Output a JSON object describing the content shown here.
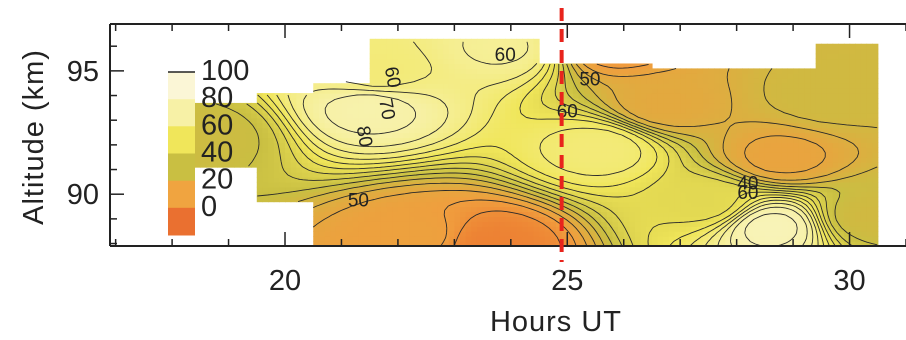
{
  "chart_data": {
    "type": "heatmap",
    "title": "",
    "xlabel": "Hours UT",
    "ylabel": "Altitude (km)",
    "xlim": [
      16.9,
      31.0
    ],
    "ylim": [
      87.9,
      96.9
    ],
    "x_ticks": [
      20,
      25,
      30
    ],
    "y_ticks": [
      90,
      95
    ],
    "x_tick_labels": [
      "20",
      "25",
      "30"
    ],
    "y_tick_labels": [
      "90",
      "95"
    ],
    "colorbar": {
      "levels": [
        100,
        80,
        60,
        40,
        20,
        0
      ],
      "labels": [
        "100",
        "80",
        "60",
        "40",
        "20",
        "0"
      ],
      "colors": [
        "#fbf6d6",
        "#f7f1a6",
        "#f0e65a",
        "#c9bf42",
        "#f0a440",
        "#ea7030"
      ]
    },
    "marker_line": {
      "x": 24.9,
      "color": "#e8241c",
      "style": "dashed"
    },
    "contour_labels": [
      {
        "text": "60",
        "x": 21.8,
        "y": 94.7
      },
      {
        "text": "70",
        "x": 21.7,
        "y": 93.4
      },
      {
        "text": "80",
        "x": 21.3,
        "y": 92.3
      },
      {
        "text": "50",
        "x": 21.3,
        "y": 89.5
      },
      {
        "text": "60",
        "x": 23.9,
        "y": 95.4
      },
      {
        "text": "50",
        "x": 25.4,
        "y": 94.4
      },
      {
        "text": "60",
        "x": 25.0,
        "y": 93.1
      },
      {
        "text": "40",
        "x": 28.2,
        "y": 90.2
      },
      {
        "text": "60",
        "x": 28.2,
        "y": 89.8
      }
    ],
    "data_columns": [
      {
        "x": [
          18.3,
          19.5
        ],
        "y": [
          91.1,
          93.8
        ]
      },
      {
        "x": [
          19.5,
          20.5
        ],
        "y": [
          89.7,
          94.1
        ]
      },
      {
        "x": [
          20.5,
          21.5
        ],
        "y": [
          87.9,
          94.6
        ]
      },
      {
        "x": [
          21.5,
          24.5
        ],
        "y": [
          87.9,
          96.3
        ]
      },
      {
        "x": [
          24.5,
          26.5
        ],
        "y": [
          87.9,
          95.4
        ]
      },
      {
        "x": [
          26.5,
          29.0
        ],
        "y": [
          87.9,
          95.2
        ]
      },
      {
        "x": [
          29.0,
          29.4
        ],
        "y": [
          87.9,
          95.2
        ]
      },
      {
        "x": [
          29.4,
          30.5
        ],
        "y": [
          87.9,
          96.1
        ]
      }
    ],
    "field_peaks": [
      {
        "x": 21.5,
        "y": 93.6,
        "level": 90
      },
      {
        "x": 21.6,
        "y": 94.8,
        "level": 72
      },
      {
        "x": 23.9,
        "y": 96.0,
        "level": 82
      },
      {
        "x": 25.6,
        "y": 91.9,
        "level": 72
      },
      {
        "x": 27.5,
        "y": 89.6,
        "level": 54
      },
      {
        "x": 28.6,
        "y": 88.7,
        "level": 96
      },
      {
        "x": 23.6,
        "y": 88.0,
        "level": 2
      },
      {
        "x": 22.4,
        "y": 88.3,
        "level": 16
      },
      {
        "x": 26.7,
        "y": 93.6,
        "level": 22
      },
      {
        "x": 28.8,
        "y": 91.5,
        "level": 18
      },
      {
        "x": 29.6,
        "y": 93.9,
        "level": 34
      },
      {
        "x": 25.8,
        "y": 96.2,
        "level": 8
      },
      {
        "x": 18.6,
        "y": 92.4,
        "level": 36
      },
      {
        "x": 30.3,
        "y": 89.1,
        "level": 34
      }
    ]
  }
}
